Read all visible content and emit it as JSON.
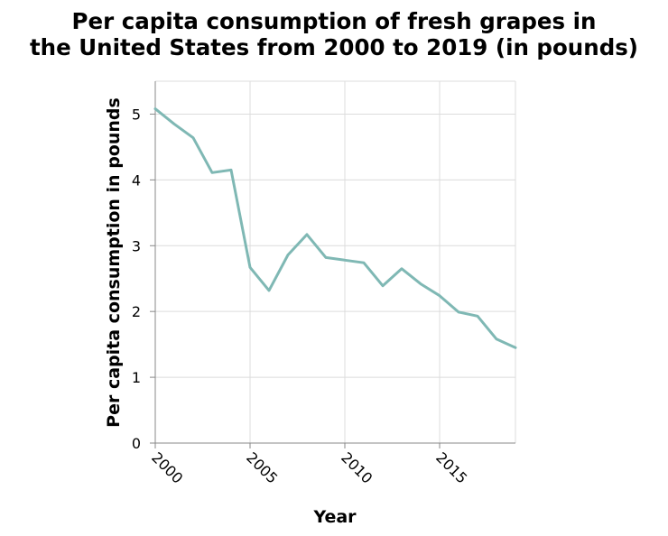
{
  "chart_data": {
    "type": "line",
    "title": [
      "Per capita consumption of fresh grapes in",
      "the United States from 2000 to 2019 (in pounds)"
    ],
    "xlabel": "Year",
    "ylabel": "Per capita consumption in pounds",
    "xlim": [
      2000,
      2019
    ],
    "ylim": [
      0,
      5.5
    ],
    "x_ticks": [
      2000,
      2005,
      2010,
      2015
    ],
    "y_ticks": [
      0,
      1,
      2,
      3,
      4,
      5
    ],
    "grid": true,
    "series_color": "#7fb8b4",
    "series": [
      {
        "x": [
          2000,
          2001,
          2002,
          2003,
          2004,
          2005,
          2006,
          2007,
          2008,
          2009,
          2010,
          2011,
          2012,
          2013,
          2014,
          2015,
          2016,
          2017,
          2018,
          2019
        ],
        "values": [
          5.08,
          4.85,
          4.64,
          4.11,
          4.15,
          2.67,
          2.32,
          2.86,
          3.17,
          2.82,
          2.78,
          2.74,
          2.39,
          2.65,
          2.42,
          2.24,
          1.99,
          1.93,
          1.58,
          1.45
        ]
      }
    ]
  }
}
